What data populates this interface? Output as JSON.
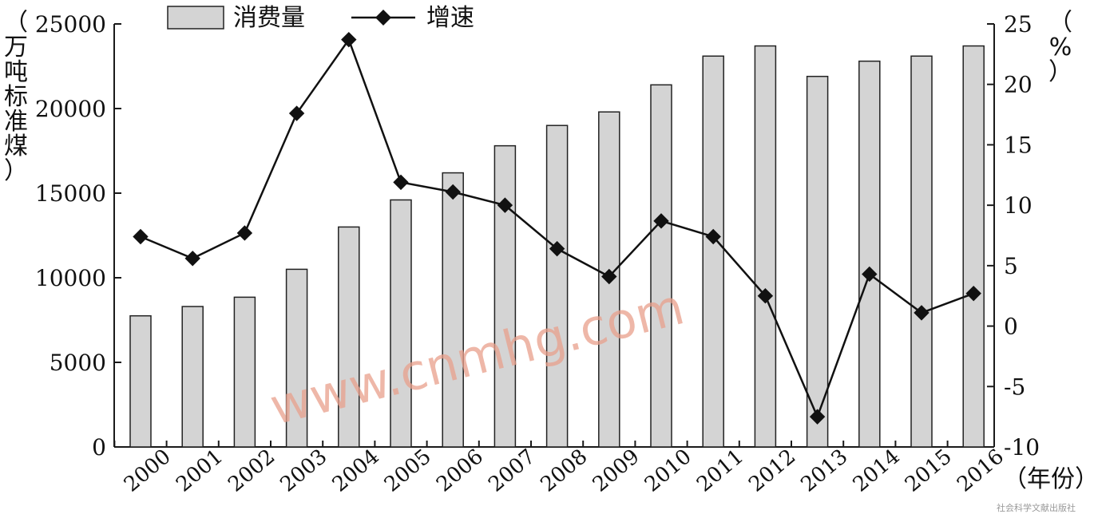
{
  "chart_data": {
    "type": "bar",
    "categories": [
      "2000",
      "2001",
      "2002",
      "2003",
      "2004",
      "2005",
      "2006",
      "2007",
      "2008",
      "2009",
      "2010",
      "2011",
      "2012",
      "2013",
      "2014",
      "2015",
      "2016"
    ],
    "series": [
      {
        "name": "消费量",
        "type": "bar",
        "axis": "left",
        "values": [
          7750,
          8300,
          8850,
          10500,
          13000,
          14600,
          16200,
          17800,
          19000,
          19800,
          21400,
          23100,
          23700,
          21900,
          22800,
          23100,
          23700
        ]
      },
      {
        "name": "增速",
        "type": "line",
        "axis": "right",
        "values": [
          7.4,
          5.6,
          7.7,
          17.6,
          23.7,
          11.9,
          11.1,
          10.0,
          6.4,
          4.1,
          8.7,
          7.4,
          2.5,
          -7.5,
          4.3,
          1.1,
          2.7
        ]
      }
    ],
    "y_left": {
      "label": "（万吨标准煤）",
      "ylim": [
        0,
        25000
      ],
      "ticks": [
        "0",
        "5000",
        "10000",
        "15000",
        "20000",
        "25000"
      ]
    },
    "y_right": {
      "label": "（%）",
      "ylim": [
        -10,
        25
      ],
      "ticks": [
        "-10",
        "-5",
        "0",
        "5",
        "10",
        "15",
        "20",
        "25"
      ]
    },
    "x_axis": {
      "label": "（年份）"
    },
    "legend": {
      "position": "top-center",
      "items": [
        "消费量",
        "增速"
      ]
    },
    "colors": {
      "bar_fill": "#d4d4d4",
      "line": "#111111",
      "marker": "#111111"
    },
    "grid": false
  },
  "watermark": "www.cnmhg.com",
  "corner_text": "社会科学文献出版社"
}
